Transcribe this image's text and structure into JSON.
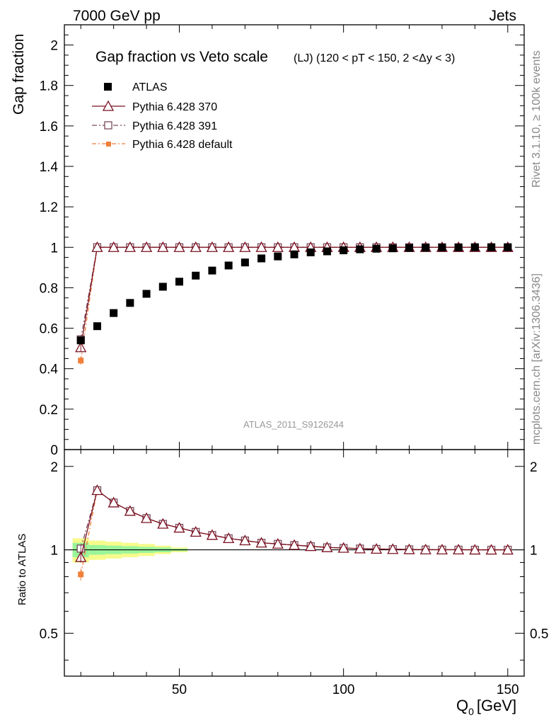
{
  "header": {
    "energy_label": "7000 GeV pp",
    "process_label": "Jets",
    "side_rivet": "Rivet 3.1.10, ≥ 100k events",
    "side_mcplots": "mcplots.cern.ch [arXiv:1306.3436]",
    "analysis_id": "ATLAS_2011_S9126244"
  },
  "chart_data": {
    "type": "scatter",
    "title": "Gap fraction vs Veto scale",
    "subtitle": "(LJ) (120 < pT < 150, 2 <Δy < 3)",
    "xlabel": "Q₀ [GeV]",
    "xlabel_main": "Q",
    "xlabel_sub": "0",
    "xlabel_unit": "[GeV]",
    "ylabel": "Gap fraction",
    "ratio_ylabel": "Ratio to ATLAS",
    "xlim": [
      15,
      155
    ],
    "ylim": [
      0,
      2.1
    ],
    "ratio_ylim": [
      0.35,
      2.3
    ],
    "x_ticks": [
      "50",
      "100",
      "150"
    ],
    "y_ticks": [
      "0",
      "0.2",
      "0.4",
      "0.6",
      "0.8",
      "1",
      "1.2",
      "1.4",
      "1.6",
      "1.8",
      "2"
    ],
    "ratio_ticks": [
      "0.5",
      "1",
      "2"
    ],
    "x": [
      20,
      25,
      30,
      35,
      40,
      45,
      50,
      55,
      60,
      65,
      70,
      75,
      80,
      85,
      90,
      95,
      100,
      105,
      110,
      115,
      120,
      125,
      130,
      135,
      140,
      145,
      150
    ],
    "legend": [
      "ATLAS",
      "Pythia 6.428 370",
      "Pythia 6.428 391",
      "Pythia 6.428 default"
    ],
    "series": [
      {
        "name": "ATLAS",
        "color": "#000000",
        "marker": "square-filled",
        "values": [
          0.54,
          0.61,
          0.675,
          0.725,
          0.77,
          0.805,
          0.83,
          0.86,
          0.885,
          0.91,
          0.925,
          0.945,
          0.955,
          0.965,
          0.975,
          0.98,
          0.985,
          0.99,
          0.993,
          0.995,
          0.997,
          0.998,
          0.999,
          0.999,
          1.0,
          1.0,
          1.0
        ]
      },
      {
        "name": "Pythia 6.428 370",
        "color": "#7a1020",
        "marker": "triangle-open",
        "dash": "",
        "values": [
          0.505,
          1,
          1,
          1,
          1,
          1,
          1,
          1,
          1,
          1,
          1,
          1,
          1,
          1,
          1,
          1,
          1,
          1,
          1,
          1,
          1,
          1,
          1,
          1,
          1,
          1,
          1
        ],
        "ratio": [
          0.94,
          1.64,
          1.48,
          1.38,
          1.3,
          1.24,
          1.2,
          1.16,
          1.13,
          1.1,
          1.08,
          1.06,
          1.05,
          1.04,
          1.03,
          1.02,
          1.015,
          1.01,
          1.007,
          1.005,
          1.003,
          1.002,
          1.001,
          1.001,
          1.0,
          1.0,
          1.0
        ]
      },
      {
        "name": "Pythia 6.428 391",
        "color": "#7a4a5a",
        "marker": "square-open",
        "dash": "7,3,2,3",
        "values": [
          0.545,
          1,
          1,
          1,
          1,
          1,
          1,
          1,
          1,
          1,
          1,
          1,
          1,
          1,
          1,
          1,
          1,
          1,
          1,
          1,
          1,
          1,
          1,
          1,
          1,
          1,
          1
        ],
        "ratio": [
          1.01,
          1.64,
          1.48,
          1.38,
          1.3,
          1.24,
          1.2,
          1.16,
          1.13,
          1.1,
          1.08,
          1.06,
          1.05,
          1.04,
          1.03,
          1.02,
          1.015,
          1.01,
          1.007,
          1.005,
          1.003,
          1.002,
          1.001,
          1.001,
          1.0,
          1.0,
          1.0
        ]
      },
      {
        "name": "Pythia 6.428 default",
        "color": "#f07f3a",
        "marker": "square-filled-small",
        "dash": "6,3,2,3",
        "values": [
          0.44,
          1,
          1,
          1,
          1,
          1,
          1,
          1,
          1,
          1,
          1,
          1,
          1,
          1,
          1,
          1,
          1,
          1,
          1,
          1,
          1,
          1,
          1,
          1,
          1,
          1,
          1
        ],
        "ratio": [
          0.815,
          1.64,
          1.48,
          1.38,
          1.3,
          1.24,
          1.2,
          1.16,
          1.13,
          1.1,
          1.08,
          1.06,
          1.05,
          1.04,
          1.03,
          1.02,
          1.015,
          1.01,
          1.007,
          1.005,
          1.003,
          1.002,
          1.001,
          1.001,
          1.0,
          1.0,
          1.0
        ]
      }
    ],
    "ratio_band": {
      "x": [
        20,
        25,
        30,
        35,
        40,
        45,
        50
      ],
      "inner_half_width": [
        0.06,
        0.04,
        0.035,
        0.03,
        0.025,
        0.02,
        0.01
      ],
      "outer_half_width": [
        0.1,
        0.08,
        0.07,
        0.06,
        0.05,
        0.035,
        0.02
      ],
      "inner_color": "#9af59a",
      "outer_color": "#f6fb8c"
    }
  }
}
